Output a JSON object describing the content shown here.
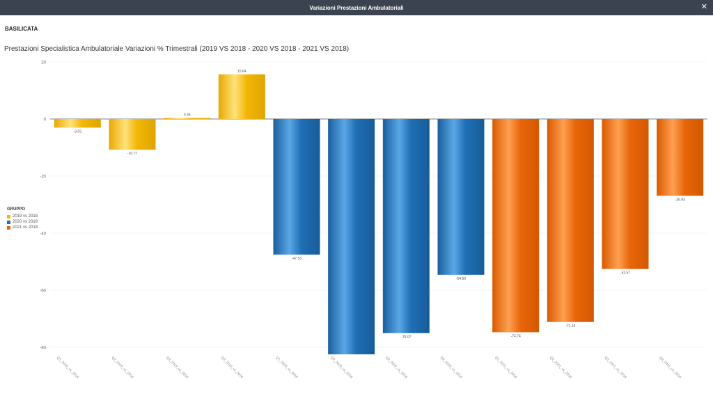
{
  "window": {
    "title": "Variazioni Prestazioni Ambulatoriali",
    "close_icon": "close-icon"
  },
  "region": "BASILICATA",
  "legend": {
    "title": "GRUPPO",
    "items": [
      {
        "label": "2019 vs 2018",
        "color": "#f2b705"
      },
      {
        "label": "2020 vs 2018",
        "color": "#1f6fb5"
      },
      {
        "label": "2021 vs 2018",
        "color": "#e8660a"
      }
    ]
  },
  "chart_data": {
    "type": "bar",
    "title": "Prestazioni Specialistica Ambulatoriale Variazioni % Trimestrali (2019 VS 2018  - 2020 VS 2018 - 2021 VS 2018)",
    "xlabel": "",
    "ylabel": "",
    "ylim": [
      -82,
      20
    ],
    "yticks": [
      20,
      0,
      -20,
      -40,
      -60,
      -80
    ],
    "grid": true,
    "legend_position": "left",
    "categories": [
      "Q1_2019_vs_2018",
      "Q2_2019_vs_2018",
      "Q3_2019_vs_2018",
      "Q4_2019_vs_2018",
      "Q1_2020_vs_2018",
      "Q2_2020_vs_2018",
      "Q3_2020_vs_2018",
      "Q4_2020_vs_2018",
      "Q1_2021_vs_2018",
      "Q2_2021_vs_2018",
      "Q3_2021_vs_2018",
      "Q4_2021_vs_2018"
    ],
    "groups": [
      0,
      0,
      0,
      0,
      1,
      1,
      1,
      1,
      2,
      2,
      2,
      2
    ],
    "values": [
      -3.03,
      -10.77,
      0.35,
      15.64,
      -47.53,
      -82.5,
      -75.07,
      -54.6,
      -74.74,
      -71.16,
      -52.57,
      -26.93
    ],
    "value_labels": [
      "-3.03",
      "-10.77",
      "0.35",
      "15.64",
      "-47.53",
      "",
      "-75.07",
      "-54.60",
      "-74.74",
      "-71.16",
      "-52.57",
      "-26.93"
    ]
  }
}
